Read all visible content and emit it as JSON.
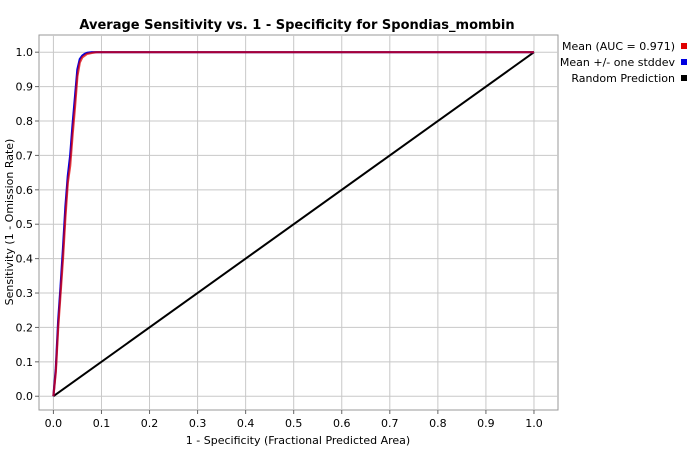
{
  "chart_data": {
    "type": "line",
    "title": "Average Sensitivity vs. 1 - Specificity for Spondias_mombin",
    "xlabel": "1 - Specificity (Fractional Predicted Area)",
    "ylabel": "Sensitivity (1 - Omission Rate)",
    "xlim": [
      -0.03,
      1.05
    ],
    "ylim": [
      -0.04,
      1.05
    ],
    "xticks": [
      0.0,
      0.1,
      0.2,
      0.3,
      0.4,
      0.5,
      0.6,
      0.7,
      0.8,
      0.9,
      1.0
    ],
    "yticks": [
      0.0,
      0.1,
      0.2,
      0.3,
      0.4,
      0.5,
      0.6,
      0.7,
      0.8,
      0.9,
      1.0
    ],
    "xtick_labels": [
      "0.0",
      "0.1",
      "0.2",
      "0.3",
      "0.4",
      "0.5",
      "0.6",
      "0.7",
      "0.8",
      "0.9",
      "1.0"
    ],
    "ytick_labels": [
      "0.0",
      "0.1",
      "0.2",
      "0.3",
      "0.4",
      "0.5",
      "0.6",
      "0.7",
      "0.8",
      "0.9",
      "1.0"
    ],
    "grid": true,
    "legend_position": "right-top",
    "series": [
      {
        "name": "Mean (AUC = 0.971)",
        "color": "#e00000",
        "x": [
          0.0,
          0.005,
          0.01,
          0.015,
          0.02,
          0.025,
          0.03,
          0.035,
          0.04,
          0.045,
          0.05,
          0.055,
          0.06,
          0.065,
          0.07,
          0.08,
          0.09,
          0.1,
          0.11,
          0.3,
          0.6,
          1.0
        ],
        "y": [
          0.0,
          0.07,
          0.2,
          0.3,
          0.4,
          0.52,
          0.62,
          0.67,
          0.76,
          0.84,
          0.93,
          0.97,
          0.985,
          0.99,
          0.995,
          0.998,
          1.0,
          1.0,
          1.0,
          1.0,
          1.0,
          1.0
        ]
      },
      {
        "name": "Mean +/- one stddev",
        "color": "#0000e0",
        "x": [
          0.0,
          0.005,
          0.01,
          0.015,
          0.02,
          0.025,
          0.03,
          0.035,
          0.04,
          0.045,
          0.05,
          0.055,
          0.06,
          0.065,
          0.07,
          0.08,
          0.09,
          0.1,
          0.11,
          0.3,
          0.6,
          1.0
        ],
        "y": [
          0.0,
          0.08,
          0.22,
          0.32,
          0.43,
          0.55,
          0.64,
          0.7,
          0.79,
          0.87,
          0.95,
          0.98,
          0.99,
          0.995,
          0.998,
          1.0,
          1.0,
          1.0,
          1.0,
          1.0,
          1.0,
          1.0
        ]
      },
      {
        "name": "Random Prediction",
        "color": "#000000",
        "x": [
          0.0,
          1.0
        ],
        "y": [
          0.0,
          1.0
        ]
      }
    ]
  }
}
